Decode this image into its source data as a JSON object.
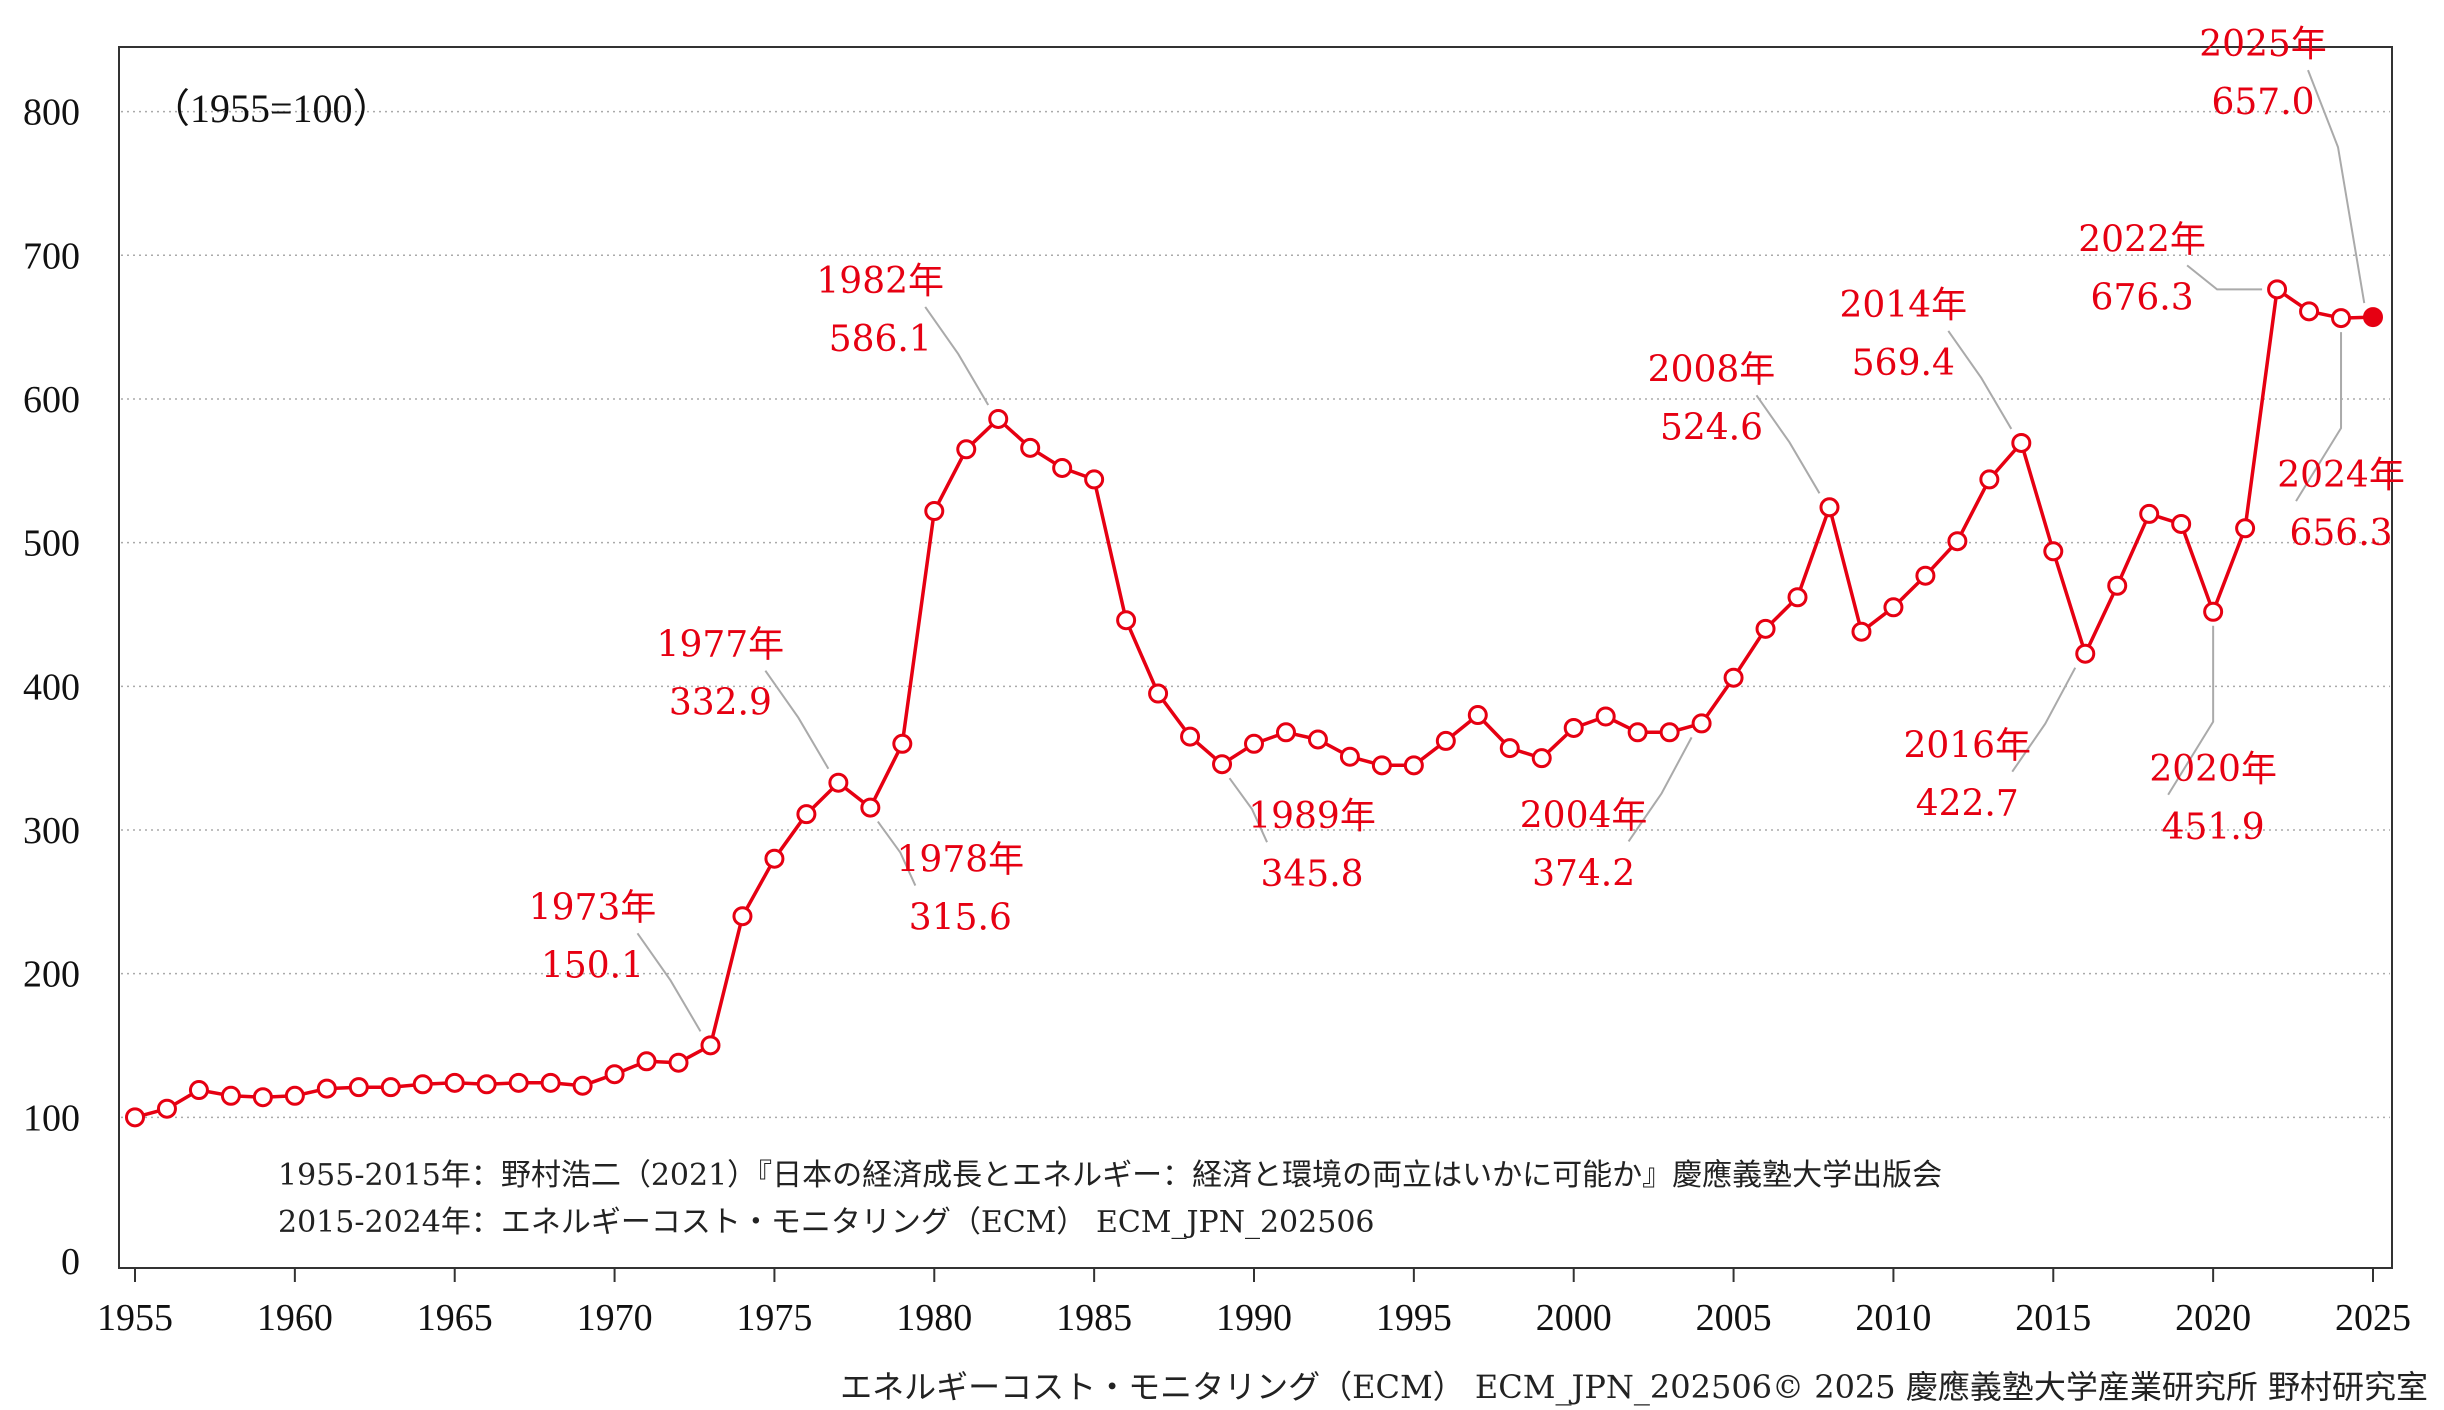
{
  "chart_data": {
    "type": "line",
    "unit_label": "（1955=100）",
    "x": [
      1955,
      1956,
      1957,
      1958,
      1959,
      1960,
      1961,
      1962,
      1963,
      1964,
      1965,
      1966,
      1967,
      1968,
      1969,
      1970,
      1971,
      1972,
      1973,
      1974,
      1975,
      1976,
      1977,
      1978,
      1979,
      1980,
      1981,
      1982,
      1983,
      1984,
      1985,
      1986,
      1987,
      1988,
      1989,
      1990,
      1991,
      1992,
      1993,
      1994,
      1995,
      1996,
      1997,
      1998,
      1999,
      2000,
      2001,
      2002,
      2003,
      2004,
      2005,
      2006,
      2007,
      2008,
      2009,
      2010,
      2011,
      2012,
      2013,
      2014,
      2015,
      2016,
      2017,
      2018,
      2019,
      2020,
      2021,
      2022,
      2023,
      2024,
      2025
    ],
    "series": [
      {
        "values": [
          100,
          106,
          119,
          115,
          114,
          115,
          120,
          121,
          121,
          123,
          124,
          123,
          124,
          124,
          122,
          130,
          139,
          138,
          150.1,
          240,
          280,
          311,
          332.9,
          315.6,
          360,
          522,
          565,
          586.1,
          566,
          552,
          544,
          446,
          395,
          365,
          345.8,
          360,
          368,
          363,
          351,
          345,
          345,
          362,
          380,
          357,
          350,
          371,
          379,
          368,
          368,
          374.2,
          406,
          440,
          462,
          524.6,
          438,
          455,
          477,
          501,
          544,
          569.4,
          494,
          422.7,
          470,
          520,
          513,
          451.9,
          510,
          676.3,
          661,
          656.3,
          657.0
        ],
        "color": "#e60012",
        "last_point_filled": true
      }
    ],
    "xlim": [
      1955,
      2025
    ],
    "ylim": [
      0,
      850
    ],
    "x_ticks": [
      "1955",
      "1960",
      "1965",
      "1970",
      "1975",
      "1980",
      "1985",
      "1990",
      "1995",
      "2000",
      "2005",
      "2010",
      "2015",
      "2020",
      "2025"
    ],
    "y_ticks": [
      "0",
      "100",
      "200",
      "300",
      "400",
      "500",
      "600",
      "700",
      "800"
    ],
    "grid": "horizontal-dotted",
    "annotations": [
      {
        "year": "1973年",
        "value": "150.1",
        "x": 1973,
        "y": 150.1,
        "side": "left-above"
      },
      {
        "year": "1977年",
        "value": "332.9",
        "x": 1977,
        "y": 332.9,
        "side": "left-above"
      },
      {
        "year": "1978年",
        "value": "315.6",
        "x": 1978,
        "y": 315.6,
        "side": "right-below"
      },
      {
        "year": "1982年",
        "value": "586.1",
        "x": 1982,
        "y": 586.1,
        "side": "left-above"
      },
      {
        "year": "1989年",
        "value": "345.8",
        "x": 1989,
        "y": 345.8,
        "side": "right-below"
      },
      {
        "year": "2004年",
        "value": "374.2",
        "x": 2004,
        "y": 374.2,
        "side": "left-below"
      },
      {
        "year": "2008年",
        "value": "524.6",
        "x": 2008,
        "y": 524.6,
        "side": "left-above"
      },
      {
        "year": "2014年",
        "value": "569.4",
        "x": 2014,
        "y": 569.4,
        "side": "left-above"
      },
      {
        "year": "2016年",
        "value": "422.7",
        "x": 2016,
        "y": 422.7,
        "side": "left-below"
      },
      {
        "year": "2020年",
        "value": "451.9",
        "x": 2020,
        "y": 451.9,
        "side": "below"
      },
      {
        "year": "2022年",
        "value": "676.3",
        "x": 2022,
        "y": 676.3,
        "side": "left"
      },
      {
        "year": "2024年",
        "value": "656.3",
        "x": 2024,
        "y": 656.3,
        "side": "below"
      },
      {
        "year": "2025年",
        "value": "657.0",
        "x": 2025,
        "y": 657.0,
        "side": "above-left"
      }
    ],
    "notes": [
      "1955-2015年：野村浩二（2021）『日本の経済成長とエネルギー：経済と環境の両立はいかに可能か』慶應義塾大学出版会",
      "2015-2024年：エネルギーコスト・モニタリング（ECM） ECM_JPN_202506"
    ]
  },
  "footer": "エネルギーコスト・モニタリング（ECM） ECM_JPN_202506© 2025 慶應義塾大学産業研究所 野村研究室"
}
